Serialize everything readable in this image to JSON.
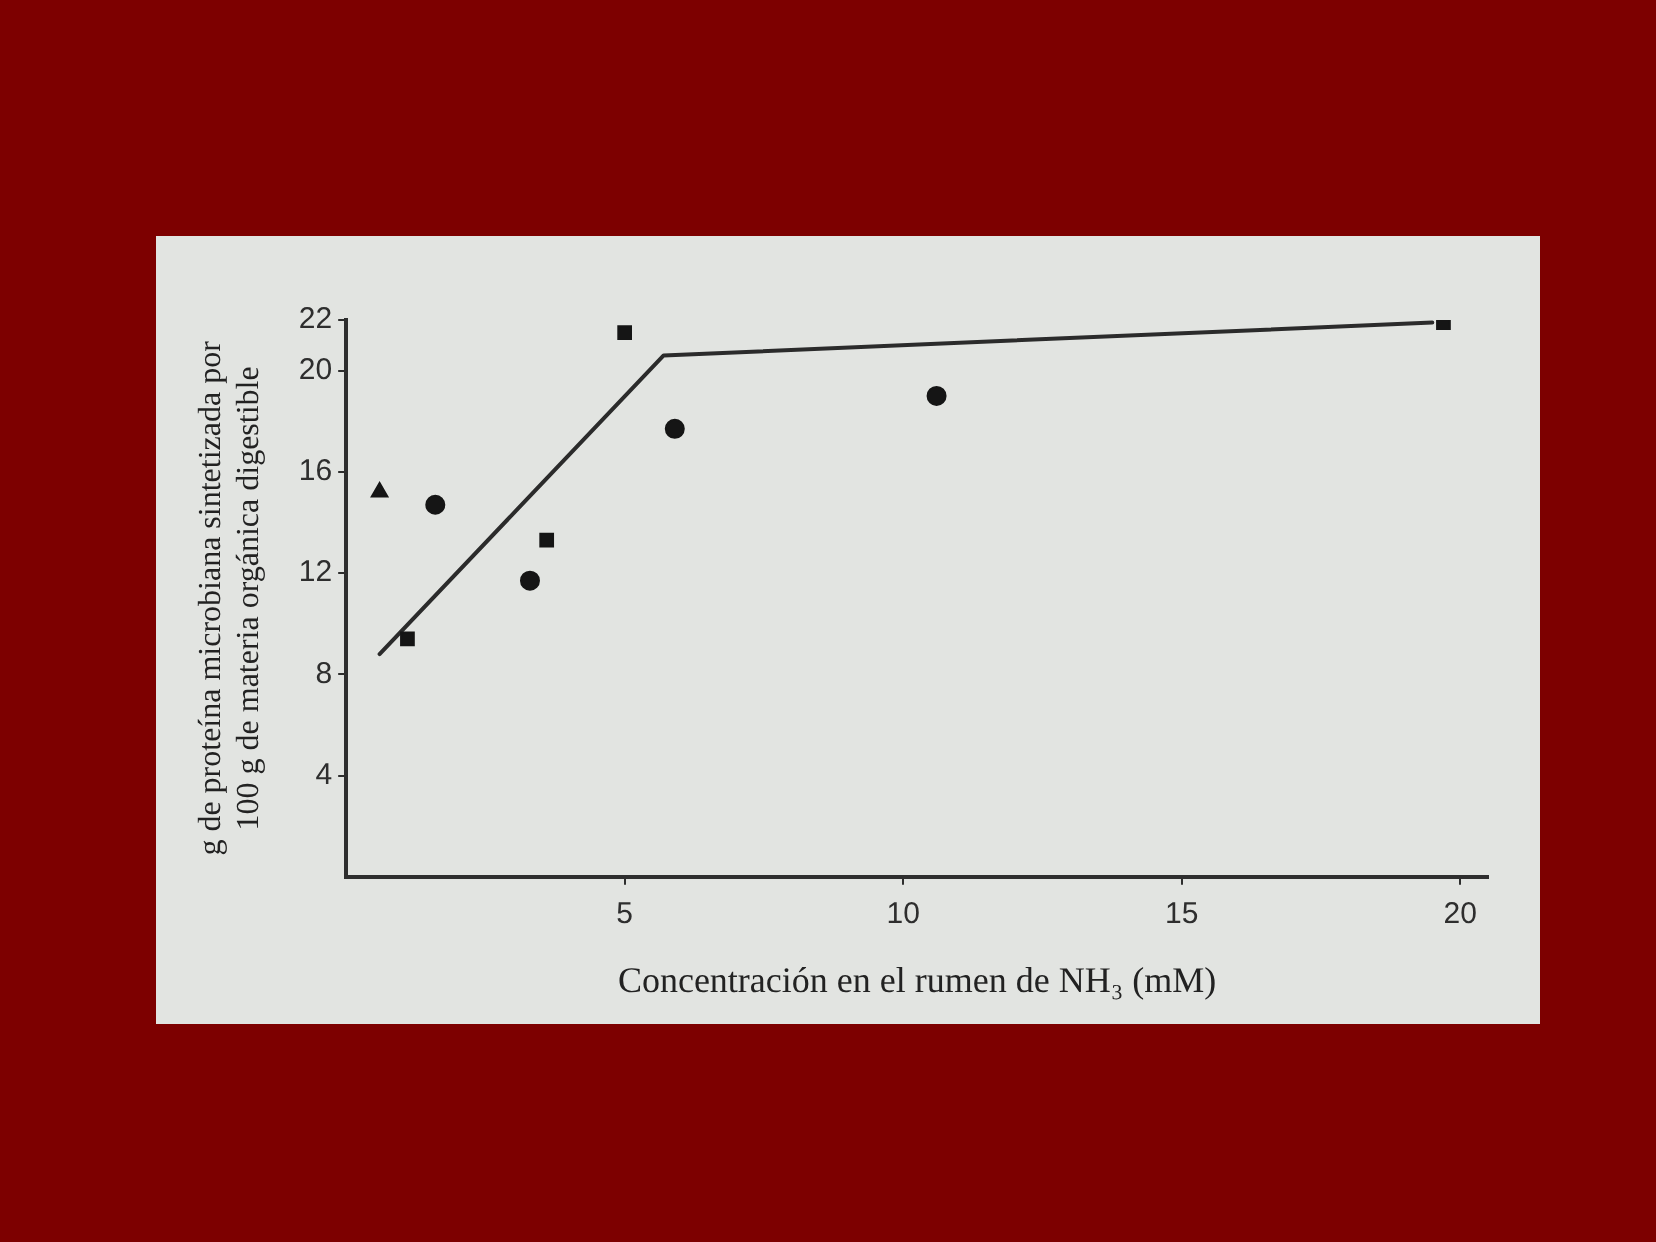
{
  "chart_data": {
    "type": "scatter",
    "xlabel": "Concentración en el rumen de NH₃ (mM)",
    "ylabel": "g de proteína microbiana sintetizada por 100 g de materia orgánica digestible",
    "xlim": [
      0,
      20.5
    ],
    "ylim": [
      0,
      22
    ],
    "xticks": [
      5,
      10,
      15,
      20
    ],
    "yticks": [
      4,
      8,
      12,
      16,
      20,
      22
    ],
    "grid": false,
    "legend": false,
    "series": [
      {
        "type": "line",
        "color": "#2b2b2b",
        "marker": "none",
        "x": [
          0.6,
          5.7,
          19.5
        ],
        "values": [
          8.8,
          20.6,
          21.9
        ]
      },
      {
        "type": "scatter",
        "color": "#151515",
        "marker": "square",
        "x": [
          1.1,
          3.6,
          5.0,
          19.7
        ],
        "values": [
          9.4,
          13.3,
          21.5,
          21.9
        ]
      },
      {
        "type": "scatter",
        "color": "#151515",
        "marker": "circle",
        "x": [
          1.6,
          3.3,
          5.9,
          10.6
        ],
        "values": [
          14.7,
          11.7,
          17.7,
          19.0
        ]
      },
      {
        "type": "scatter",
        "color": "#151515",
        "marker": "triangle",
        "x": [
          0.6
        ],
        "values": [
          15.2
        ]
      }
    ]
  }
}
